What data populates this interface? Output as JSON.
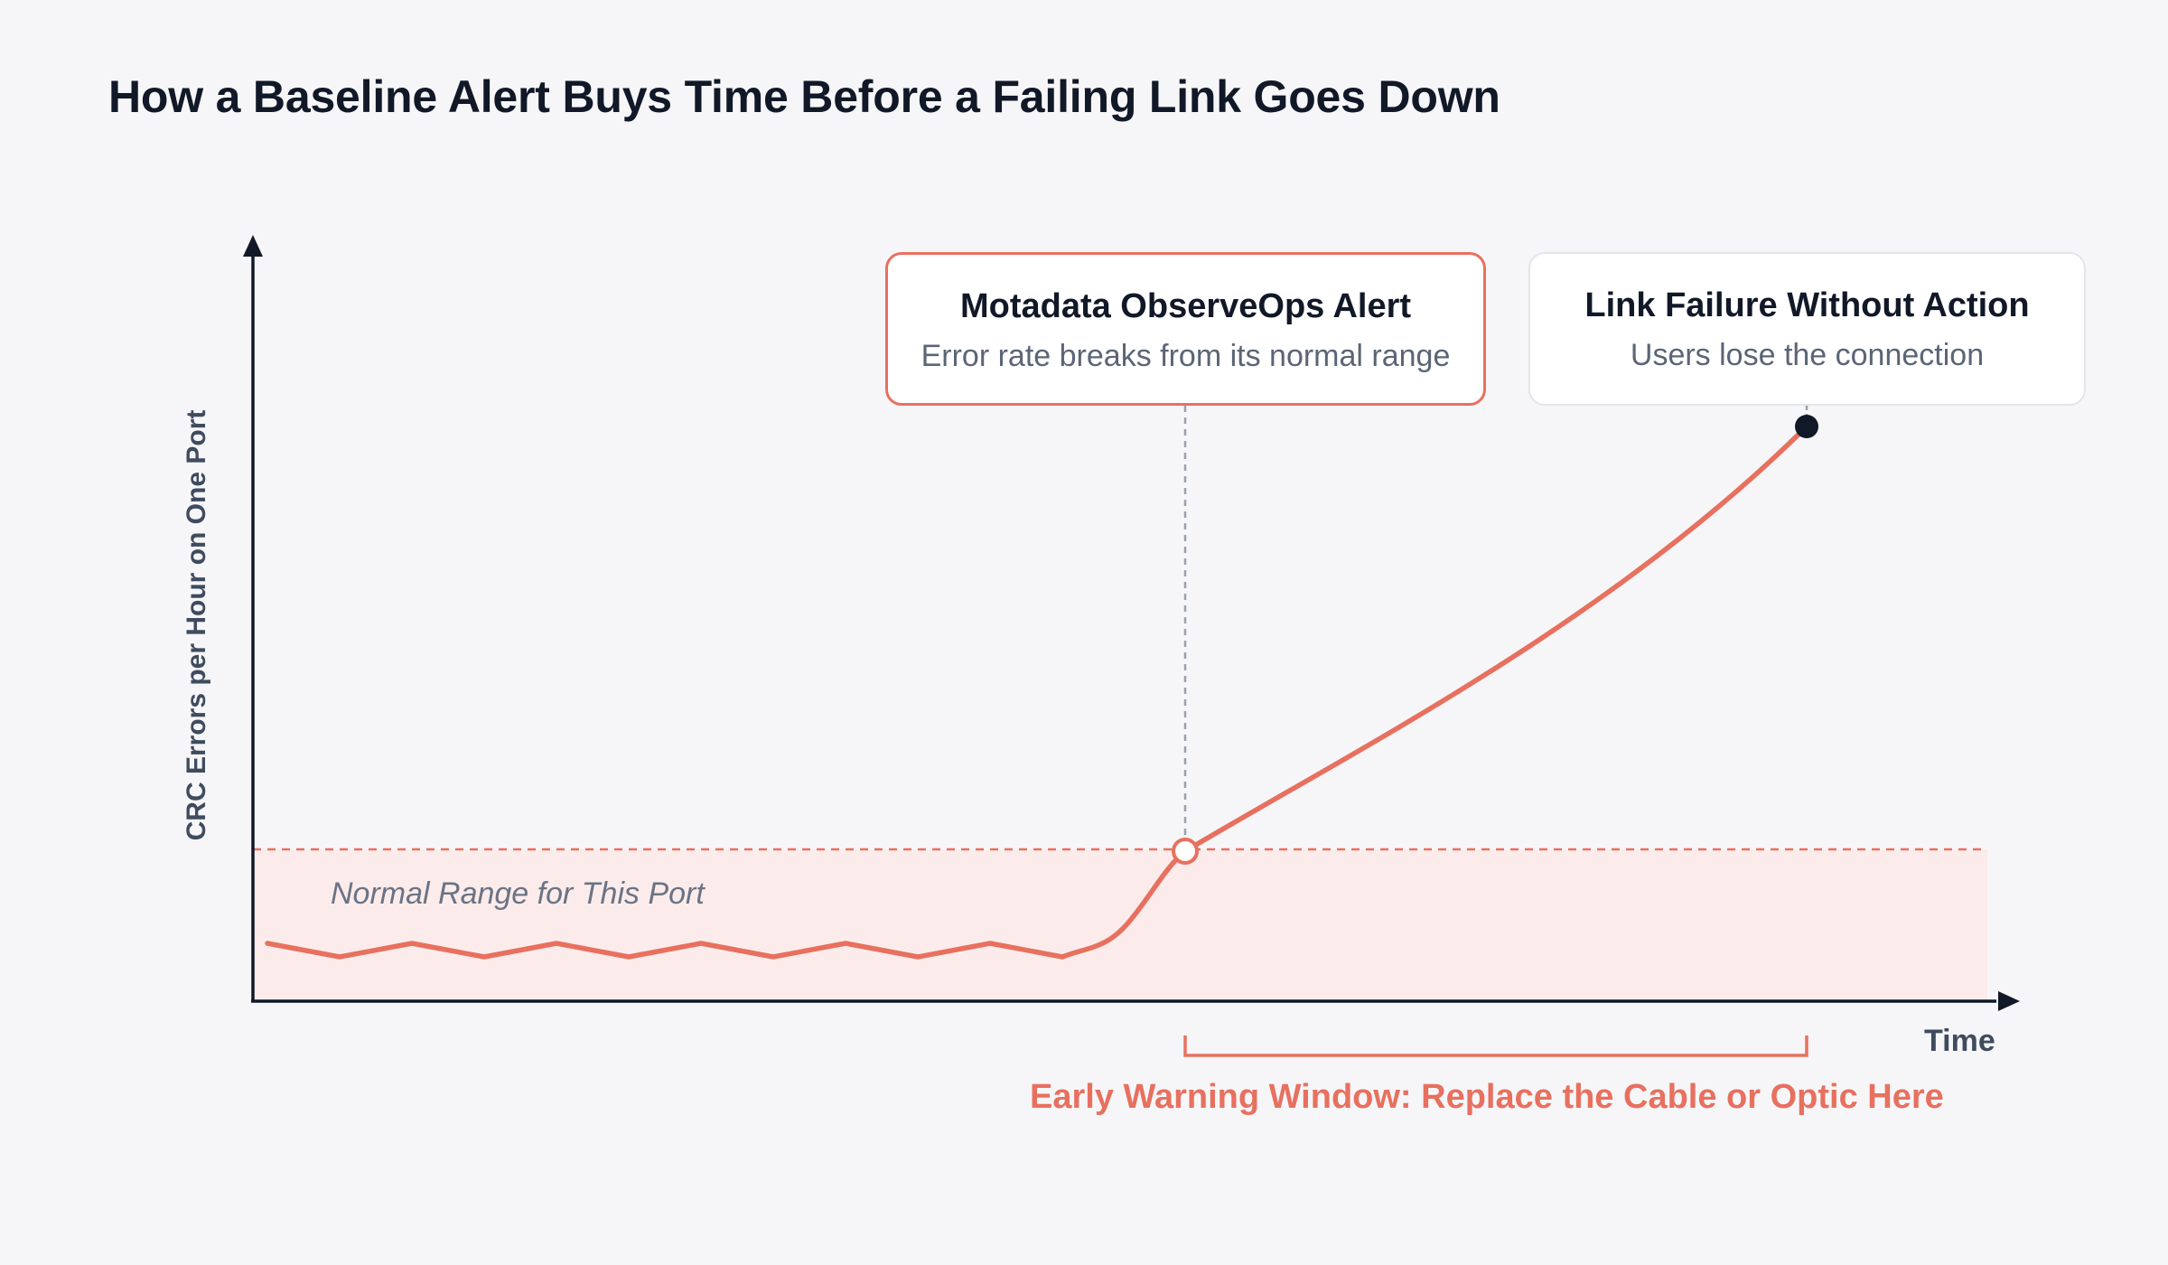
{
  "title": "How a Baseline Alert Buys Time Before a Failing Link Goes Down",
  "axes": {
    "y_label": "CRC Errors per Hour on One Port",
    "x_label": "Time"
  },
  "normal_range": {
    "label": "Normal Range for This Port",
    "fill_color": "#fbeceb",
    "threshold_color": "#e8705f"
  },
  "callouts": {
    "alert": {
      "title": "Motadata ObserveOps Alert",
      "subtitle": "Error rate breaks from its normal range",
      "border_color": "#e8705f"
    },
    "failure": {
      "title": "Link Failure Without Action",
      "subtitle": "Users lose the connection",
      "border_color": "#e3e5ea"
    }
  },
  "window": {
    "label": "Early Warning Window: Replace the Cable or Optic Here",
    "color": "#e8705f"
  },
  "colors": {
    "line": "#e8705f",
    "axis": "#111827",
    "failure_point": "#111827"
  },
  "icons": {
    "alert_marker": "hollow-circle-icon",
    "failure_marker": "filled-circle-icon"
  }
}
